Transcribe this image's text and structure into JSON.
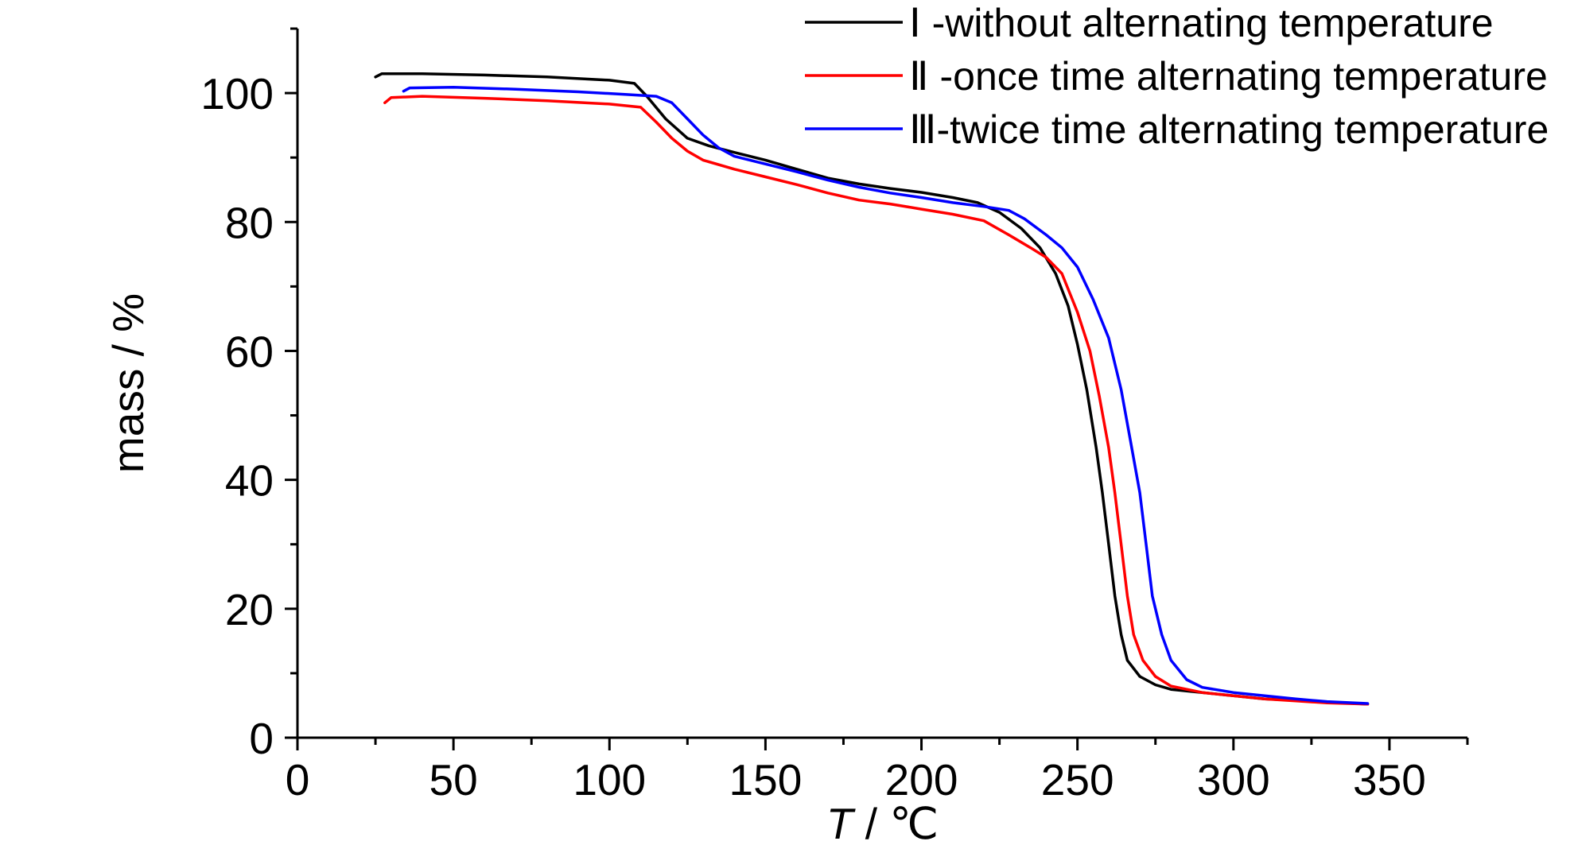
{
  "chart_data": {
    "type": "line",
    "xlabel_italic": "T",
    "xlabel_rest": " / ℃",
    "ylabel": "mass / %",
    "xlim": [
      0,
      375
    ],
    "ylim": [
      0,
      110
    ],
    "x_ticks": [
      "0",
      "50",
      "100",
      "150",
      "200",
      "250",
      "300",
      "350"
    ],
    "y_ticks": [
      "0",
      "20",
      "40",
      "60",
      "80",
      "100"
    ],
    "legend_position": "top-right",
    "series": [
      {
        "name": "Ⅰ -without alternating temperature",
        "color": "#000000",
        "points": [
          [
            25,
            102.5
          ],
          [
            27,
            103.0
          ],
          [
            40,
            103.0
          ],
          [
            60,
            102.8
          ],
          [
            80,
            102.5
          ],
          [
            100,
            102.0
          ],
          [
            108,
            101.5
          ],
          [
            112,
            99.5
          ],
          [
            118,
            96.0
          ],
          [
            125,
            93.0
          ],
          [
            132,
            91.8
          ],
          [
            140,
            90.8
          ],
          [
            150,
            89.6
          ],
          [
            160,
            88.2
          ],
          [
            170,
            86.8
          ],
          [
            180,
            85.9
          ],
          [
            190,
            85.2
          ],
          [
            200,
            84.6
          ],
          [
            210,
            83.8
          ],
          [
            218,
            83.0
          ],
          [
            225,
            81.5
          ],
          [
            232,
            79.0
          ],
          [
            238,
            76.0
          ],
          [
            243,
            72.0
          ],
          [
            247,
            67.0
          ],
          [
            250,
            61.0
          ],
          [
            253,
            54.0
          ],
          [
            256,
            45.0
          ],
          [
            258,
            38.0
          ],
          [
            260,
            30.0
          ],
          [
            262,
            22.0
          ],
          [
            264,
            16.0
          ],
          [
            266,
            12.0
          ],
          [
            270,
            9.5
          ],
          [
            275,
            8.2
          ],
          [
            280,
            7.5
          ],
          [
            290,
            7.0
          ],
          [
            300,
            6.5
          ],
          [
            310,
            6.0
          ],
          [
            320,
            5.8
          ],
          [
            330,
            5.5
          ],
          [
            343,
            5.2
          ]
        ]
      },
      {
        "name": "Ⅱ -once time alternating temperature",
        "color": "#ff0000",
        "points": [
          [
            28,
            98.5
          ],
          [
            30,
            99.3
          ],
          [
            40,
            99.5
          ],
          [
            60,
            99.2
          ],
          [
            80,
            98.8
          ],
          [
            100,
            98.3
          ],
          [
            110,
            97.8
          ],
          [
            115,
            95.5
          ],
          [
            120,
            93.0
          ],
          [
            125,
            91.0
          ],
          [
            130,
            89.6
          ],
          [
            140,
            88.2
          ],
          [
            150,
            87.0
          ],
          [
            160,
            85.8
          ],
          [
            170,
            84.5
          ],
          [
            180,
            83.4
          ],
          [
            190,
            82.8
          ],
          [
            200,
            82.0
          ],
          [
            210,
            81.2
          ],
          [
            220,
            80.2
          ],
          [
            228,
            78.0
          ],
          [
            235,
            76.0
          ],
          [
            240,
            74.5
          ],
          [
            245,
            72.0
          ],
          [
            250,
            66.0
          ],
          [
            254,
            60.0
          ],
          [
            257,
            53.0
          ],
          [
            260,
            45.0
          ],
          [
            262,
            38.0
          ],
          [
            264,
            30.0
          ],
          [
            266,
            22.0
          ],
          [
            268,
            16.0
          ],
          [
            271,
            12.0
          ],
          [
            275,
            9.5
          ],
          [
            280,
            8.0
          ],
          [
            290,
            7.0
          ],
          [
            300,
            6.5
          ],
          [
            310,
            6.0
          ],
          [
            320,
            5.7
          ],
          [
            330,
            5.4
          ],
          [
            343,
            5.2
          ]
        ]
      },
      {
        "name": "Ⅲ-twice time alternating temperature",
        "color": "#0000ff",
        "points": [
          [
            34,
            100.3
          ],
          [
            36,
            100.8
          ],
          [
            50,
            100.9
          ],
          [
            70,
            100.6
          ],
          [
            90,
            100.2
          ],
          [
            105,
            99.8
          ],
          [
            115,
            99.5
          ],
          [
            120,
            98.5
          ],
          [
            125,
            96.0
          ],
          [
            130,
            93.5
          ],
          [
            135,
            91.5
          ],
          [
            140,
            90.2
          ],
          [
            150,
            89.0
          ],
          [
            160,
            87.8
          ],
          [
            170,
            86.5
          ],
          [
            180,
            85.4
          ],
          [
            190,
            84.5
          ],
          [
            200,
            83.8
          ],
          [
            210,
            83.0
          ],
          [
            220,
            82.4
          ],
          [
            228,
            81.8
          ],
          [
            233,
            80.5
          ],
          [
            240,
            78.0
          ],
          [
            245,
            76.0
          ],
          [
            250,
            73.0
          ],
          [
            255,
            68.0
          ],
          [
            260,
            62.0
          ],
          [
            264,
            54.0
          ],
          [
            267,
            46.0
          ],
          [
            270,
            38.0
          ],
          [
            272,
            30.0
          ],
          [
            274,
            22.0
          ],
          [
            277,
            16.0
          ],
          [
            280,
            12.0
          ],
          [
            285,
            9.0
          ],
          [
            290,
            7.8
          ],
          [
            300,
            7.0
          ],
          [
            310,
            6.5
          ],
          [
            320,
            6.0
          ],
          [
            330,
            5.6
          ],
          [
            343,
            5.3
          ]
        ]
      }
    ]
  }
}
